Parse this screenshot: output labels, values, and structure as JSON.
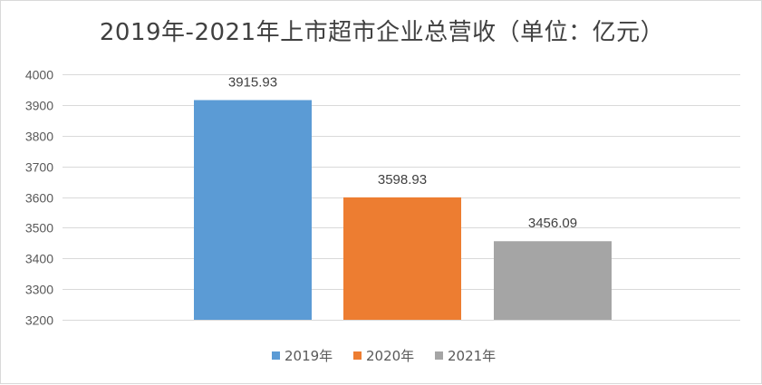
{
  "title": "2019年-2021年上市超市企业总营收（单位：亿元）",
  "chart_data": {
    "type": "bar",
    "title": "2019年-2021年上市超市企业总营收（单位：亿元）",
    "xlabel": "",
    "ylabel": "",
    "ylim": [
      3200,
      4000
    ],
    "yticks": [
      3200,
      3300,
      3400,
      3500,
      3600,
      3700,
      3800,
      3900,
      4000
    ],
    "grid": true,
    "legend_position": "bottom",
    "series": [
      {
        "name": "2019年",
        "value": 3915.93,
        "label": "3915.93",
        "color": "#5b9bd5"
      },
      {
        "name": "2020年",
        "value": 3598.93,
        "label": "3598.93",
        "color": "#ed7d31"
      },
      {
        "name": "2021年",
        "value": 3456.09,
        "label": "3456.09",
        "color": "#a5a5a5"
      }
    ]
  }
}
